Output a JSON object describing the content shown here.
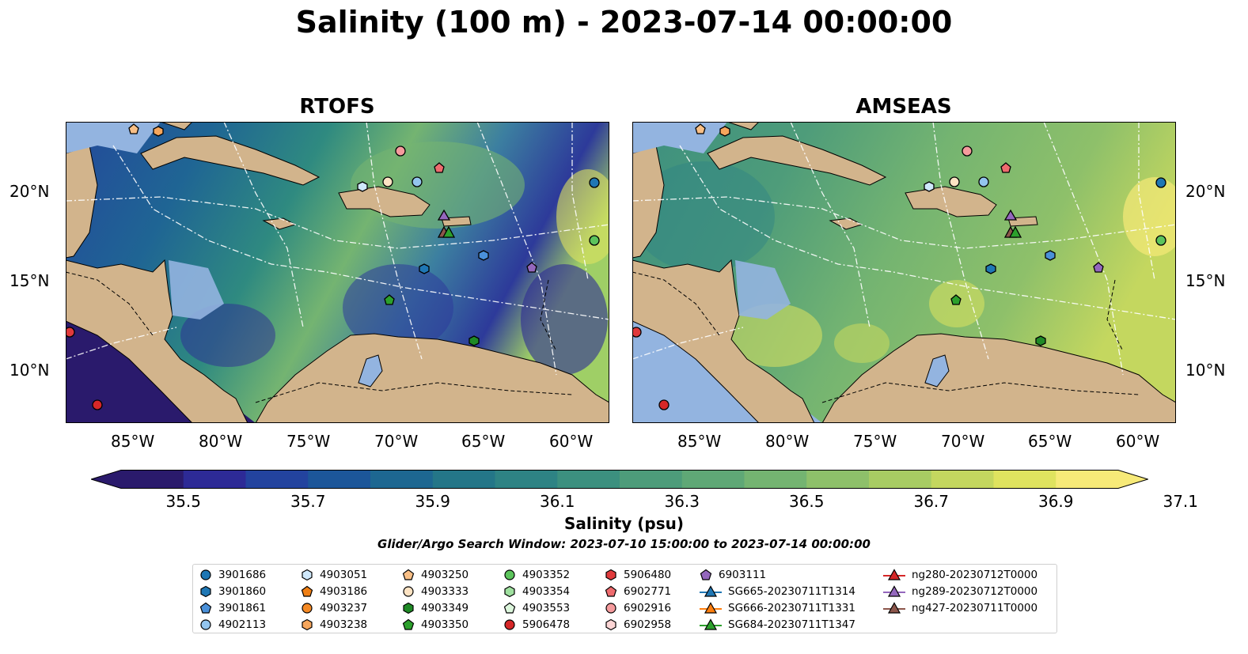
{
  "title": "Salinity (100 m) - 2023-07-14 00:00:00",
  "panels": [
    {
      "name": "RTOFS",
      "fill": "rtofs"
    },
    {
      "name": "AMSEAS",
      "fill": "amseas"
    }
  ],
  "lon_ticks": [
    "85°W",
    "80°W",
    "75°W",
    "70°W",
    "65°W",
    "60°W"
  ],
  "lat_ticks": [
    "20°N",
    "15°N",
    "10°N"
  ],
  "colorbar": {
    "label": "Salinity (psu)",
    "ticks": [
      "35.5",
      "35.7",
      "35.9",
      "36.1",
      "36.3",
      "36.5",
      "36.7",
      "36.9",
      "37.1"
    ],
    "colors": [
      "#2a1a6c",
      "#2d2a96",
      "#23439e",
      "#1c5699",
      "#1d6791",
      "#247688",
      "#2e8384",
      "#3c907f",
      "#4d9c7a",
      "#5fa876",
      "#74b471",
      "#8ec06a",
      "#a8cc63",
      "#c4d75f",
      "#dfe35f",
      "#f7ea78"
    ],
    "extend": "both"
  },
  "search_window": "Glider/Argo Search Window: 2023-07-10 15:00:00 to 2023-07-14 00:00:00",
  "legend": [
    {
      "label": "3901686",
      "marker": "circle",
      "color": "#1f77b4"
    },
    {
      "label": "3901860",
      "marker": "hexagon",
      "color": "#1f77b4"
    },
    {
      "label": "3901861",
      "marker": "pentagon",
      "color": "#4a90d9"
    },
    {
      "label": "4902113",
      "marker": "circle",
      "color": "#93c5ee"
    },
    {
      "label": "4903051",
      "marker": "hexagon",
      "color": "#cfe8fb"
    },
    {
      "label": "4903186",
      "marker": "pentagon",
      "color": "#ef7f14"
    },
    {
      "label": "4903237",
      "marker": "circle",
      "color": "#f58a25"
    },
    {
      "label": "4903238",
      "marker": "hexagon",
      "color": "#f6a65c"
    },
    {
      "label": "4903250",
      "marker": "pentagon",
      "color": "#f8bf86"
    },
    {
      "label": "4903333",
      "marker": "circle",
      "color": "#fde3c3"
    },
    {
      "label": "4903349",
      "marker": "hexagon",
      "color": "#1f8a26"
    },
    {
      "label": "4903350",
      "marker": "pentagon",
      "color": "#2ca02c"
    },
    {
      "label": "4903352",
      "marker": "circle",
      "color": "#5cc45c"
    },
    {
      "label": "4903354",
      "marker": "hexagon",
      "color": "#9fe09f"
    },
    {
      "label": "4903553",
      "marker": "pentagon",
      "color": "#dcf6dc"
    },
    {
      "label": "5906478",
      "marker": "circle",
      "color": "#d62728"
    },
    {
      "label": "5906480",
      "marker": "hexagon",
      "color": "#e03a3c"
    },
    {
      "label": "6902771",
      "marker": "pentagon",
      "color": "#ee6b6e"
    },
    {
      "label": "6902916",
      "marker": "circle",
      "color": "#f59b9d"
    },
    {
      "label": "6902958",
      "marker": "hexagon",
      "color": "#fcd5d5"
    },
    {
      "label": "6903111",
      "marker": "pentagon",
      "color": "#9467bd"
    },
    {
      "label": "SG665-20230711T1314",
      "marker": "triangle-line",
      "color": "#1f77b4"
    },
    {
      "label": "SG666-20230711T1331",
      "marker": "triangle-line",
      "color": "#ff7f0e"
    },
    {
      "label": "SG684-20230711T1347",
      "marker": "triangle-line",
      "color": "#2ca02c"
    },
    {
      "label": "ng280-20230712T0000",
      "marker": "triangle-line",
      "color": "#d62728"
    },
    {
      "label": "ng289-20230712T0000",
      "marker": "triangle-line",
      "color": "#9467bd"
    },
    {
      "label": "ng427-20230711T0000",
      "marker": "triangle-line",
      "color": "#8c564b"
    }
  ],
  "map_colors": {
    "land": "#d2b48c",
    "shelf": "#93b4e0"
  }
}
